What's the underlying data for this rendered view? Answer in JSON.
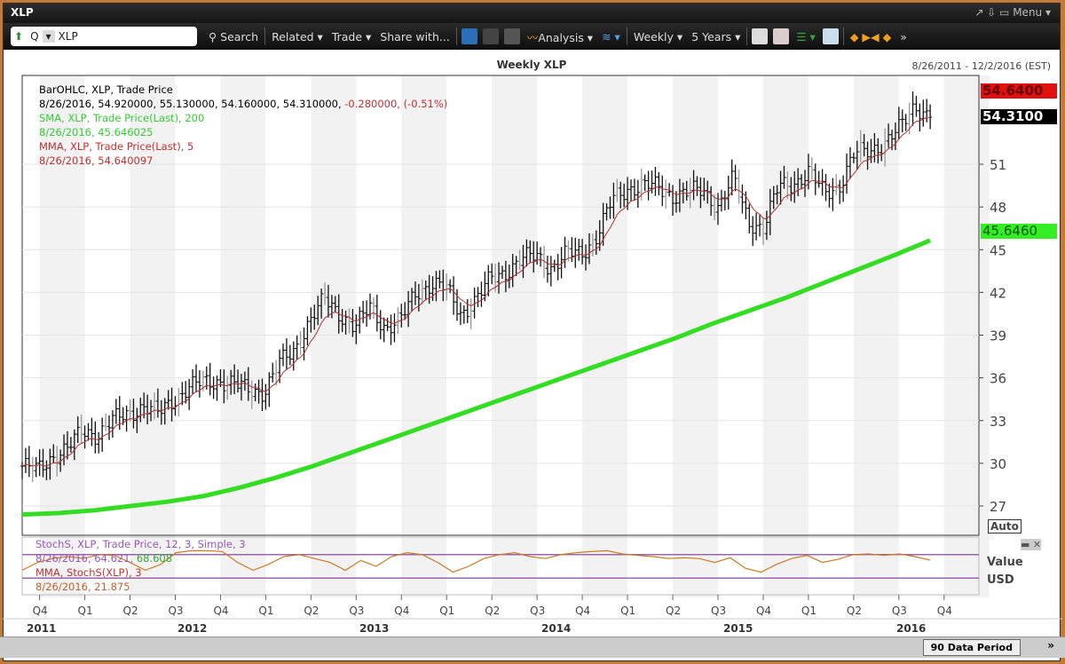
{
  "window": {
    "title": "XLP",
    "controls": "↗  ⇩  ▭ Menu ▾"
  },
  "toolbar": {
    "symbol_type": "Q",
    "symbol": "XLP",
    "search": "Search",
    "related": "Related ▾",
    "trade": "Trade ▾",
    "share": "Share with...",
    "analysis": "Analysis ▾",
    "period": "Weekly ▾",
    "range": "5 Years ▾",
    "more": "»"
  },
  "chart": {
    "title": "Weekly XLP",
    "date_range": "8/26/2011 - 12/2/2016 (EST)"
  },
  "legend": {
    "l1": "BarOHLC, XLP, Trade Price",
    "l2a": "8/26/2016, 54.920000, 55.130000, 54.160000, 54.310000, ",
    "l2b": "-0.280000, (-0.51%)",
    "l3": "SMA, XLP, Trade Price(Last),  200",
    "l4": "8/26/2016, 45.646025",
    "l5": "MMA, XLP, Trade Price(Last),  5",
    "l6": "8/26/2016, 54.640097"
  },
  "stoch_legend": {
    "l1": "StochS, XLP, Trade Price,  12, 3, Simple, 3",
    "l2a": "8/26/2016, 64.621, ",
    "l2b": "68.608",
    "l3": "MMA, StochS(XLP),  3",
    "l4": "8/26/2016, 21.875"
  },
  "price_tags": {
    "mma": "54.6400",
    "last": "54.3100",
    "sma": "45.6460"
  },
  "axis": {
    "auto": "Auto",
    "value": "Value",
    "usd": "USD",
    "yticks": [
      27,
      30,
      33,
      36,
      39,
      42,
      45,
      48,
      51
    ],
    "quarters": [
      "Q4",
      "Q1",
      "Q2",
      "Q3",
      "Q4",
      "Q1",
      "Q2",
      "Q3",
      "Q4",
      "Q1",
      "Q2",
      "Q3",
      "Q4",
      "Q1",
      "Q2",
      "Q3",
      "Q4",
      "Q1",
      "Q2",
      "Q3",
      "Q4"
    ],
    "years": [
      "2011",
      "2012",
      "2013",
      "2014",
      "2015",
      "2016"
    ]
  },
  "bottom": {
    "data_period": "90 Data Period",
    "next": "»"
  },
  "colors": {
    "sma": "#33dd22",
    "mma": "#b03030",
    "bars": "#111111",
    "stoch": "#cc7a20",
    "band": "#9966aa"
  },
  "chart_data": {
    "type": "bar",
    "subtype": "ohlc-weekly",
    "monthly_close_from_2011_09": [
      29.5,
      30.5,
      31,
      32.3,
      32,
      33,
      33.5,
      34,
      33.5,
      34.5,
      35.3,
      35.7,
      35.8,
      35.5,
      35.2,
      35,
      37,
      38,
      40,
      41.5,
      40.5,
      39.5,
      41,
      39.5,
      40,
      42,
      42.6,
      42.3,
      40.5,
      41.5,
      43,
      43.5,
      44.3,
      44.6,
      43.7,
      44.7,
      44.8,
      46,
      48.5,
      49.3,
      49.5,
      49.4,
      48.8,
      49,
      49.2,
      48,
      50,
      47,
      46.5,
      49.5,
      49.7,
      50.4,
      49,
      49.5,
      51.7,
      52,
      52.5,
      53.5,
      55.2,
      54.3
    ],
    "sma200_quarterly_from_2011_09": [
      26.4,
      26.5,
      26.7,
      27,
      27.3,
      27.7,
      28.3,
      29,
      29.8,
      30.7,
      31.6,
      32.5,
      33.4,
      34.3,
      35.2,
      36.1,
      37,
      37.9,
      38.8,
      39.8,
      40.7,
      41.6,
      42.6,
      43.6,
      44.6,
      45.65
    ],
    "stoch_monthly": [
      40,
      60,
      70,
      75,
      70,
      80,
      78,
      60,
      40,
      55,
      85,
      90,
      90,
      88,
      60,
      40,
      55,
      75,
      80,
      70,
      60,
      40,
      65,
      50,
      75,
      85,
      80,
      60,
      35,
      50,
      70,
      80,
      85,
      75,
      70,
      80,
      85,
      88,
      90,
      82,
      78,
      75,
      70,
      72,
      70,
      60,
      72,
      45,
      35,
      55,
      70,
      78,
      60,
      68,
      80,
      82,
      78,
      82,
      75,
      66
    ],
    "ylim": [
      25,
      56.5
    ],
    "xlabel": "",
    "ylabel": "USD"
  }
}
